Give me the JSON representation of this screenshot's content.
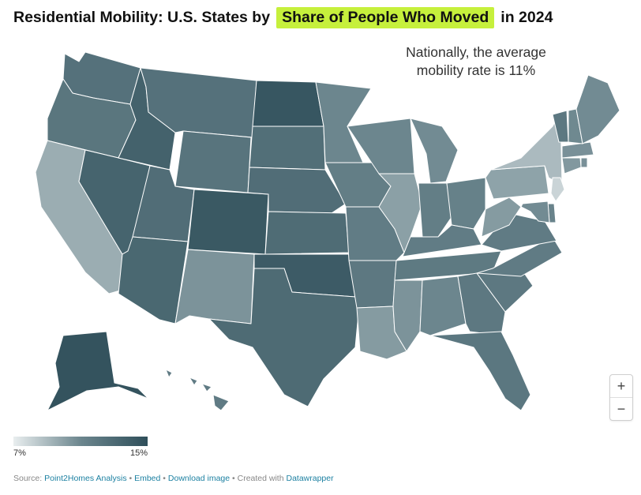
{
  "title": {
    "prefix": "Residential Mobility: U.S. States by",
    "highlight": "Share of People Who Moved",
    "suffix": "in 2024"
  },
  "annotation": [
    "Nationally, the average",
    "mobility rate is 11%"
  ],
  "legend": {
    "min_label": "7%",
    "max_label": "15%"
  },
  "colors": {
    "highlight": "#c6f03c",
    "scale_low": "#e9eeef",
    "scale_mid": "#6c868e",
    "scale_high": "#2f4f5a",
    "link": "#1d81a2"
  },
  "zoom": {
    "in_label": "+",
    "out_label": "−"
  },
  "footer": {
    "source_prefix": "Source:",
    "source_link": "Point2Homes Analysis",
    "sep1": " • ",
    "embed": "Embed",
    "sep2": " • ",
    "download": "Download image",
    "sep3": " • Created with ",
    "datawrapper": "Datawrapper"
  },
  "chart_data": {
    "type": "choropleth",
    "title": "Residential Mobility: U.S. States by Share of People Who Moved in 2024",
    "metric": "Share of people who moved (%)",
    "scale_range": [
      7,
      15
    ],
    "national_average": 11,
    "states": [
      {
        "code": "WA",
        "value": 12.5
      },
      {
        "code": "OR",
        "value": 12.2
      },
      {
        "code": "CA",
        "value": 9.5
      },
      {
        "code": "NV",
        "value": 13.5
      },
      {
        "code": "ID",
        "value": 13.6
      },
      {
        "code": "MT",
        "value": 12.5
      },
      {
        "code": "WY",
        "value": 12.3
      },
      {
        "code": "UT",
        "value": 12.8
      },
      {
        "code": "AZ",
        "value": 13.2
      },
      {
        "code": "CO",
        "value": 14.3
      },
      {
        "code": "NM",
        "value": 10.5
      },
      {
        "code": "ND",
        "value": 14.5
      },
      {
        "code": "SD",
        "value": 12.7
      },
      {
        "code": "NE",
        "value": 12.8
      },
      {
        "code": "KS",
        "value": 12.9
      },
      {
        "code": "OK",
        "value": 14.1
      },
      {
        "code": "TX",
        "value": 13.0
      },
      {
        "code": "MN",
        "value": 11.0
      },
      {
        "code": "IA",
        "value": 11.6
      },
      {
        "code": "MO",
        "value": 11.7
      },
      {
        "code": "AR",
        "value": 12.0
      },
      {
        "code": "LA",
        "value": 10.2
      },
      {
        "code": "WI",
        "value": 11.0
      },
      {
        "code": "IL",
        "value": 10.0
      },
      {
        "code": "MI",
        "value": 10.8
      },
      {
        "code": "IN",
        "value": 11.6
      },
      {
        "code": "OH",
        "value": 11.4
      },
      {
        "code": "KY",
        "value": 11.7
      },
      {
        "code": "TN",
        "value": 11.9
      },
      {
        "code": "MS",
        "value": 10.5
      },
      {
        "code": "AL",
        "value": 11.0
      },
      {
        "code": "GA",
        "value": 12.0
      },
      {
        "code": "FL",
        "value": 12.1
      },
      {
        "code": "SC",
        "value": 12.0
      },
      {
        "code": "NC",
        "value": 11.8
      },
      {
        "code": "VA",
        "value": 11.8
      },
      {
        "code": "WV",
        "value": 10.2
      },
      {
        "code": "PA",
        "value": 9.9
      },
      {
        "code": "NY",
        "value": 9.0
      },
      {
        "code": "NJ",
        "value": 8.0
      },
      {
        "code": "DE",
        "value": 11.2
      },
      {
        "code": "MD",
        "value": 10.8
      },
      {
        "code": "CT",
        "value": 10.3
      },
      {
        "code": "RI",
        "value": 10.6
      },
      {
        "code": "MA",
        "value": 10.6
      },
      {
        "code": "VT",
        "value": 12.0
      },
      {
        "code": "NH",
        "value": 10.9
      },
      {
        "code": "ME",
        "value": 10.8
      },
      {
        "code": "AK",
        "value": 14.7
      },
      {
        "code": "HI",
        "value": 11.8
      }
    ]
  }
}
